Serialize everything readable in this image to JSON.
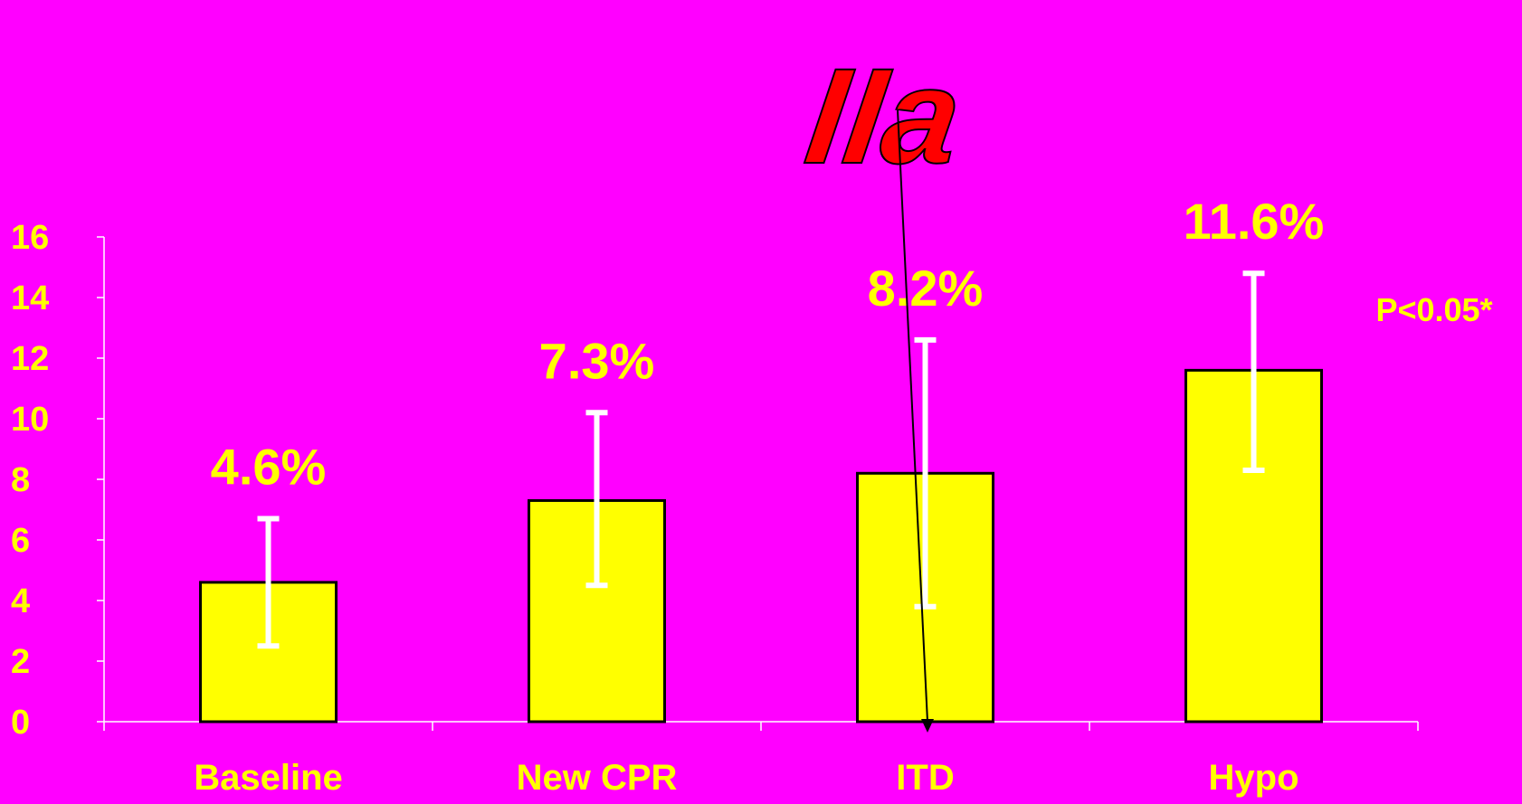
{
  "colors": {
    "background": "#FF00FF",
    "bar_fill": "#FFFF00",
    "bar_stroke": "#000000",
    "text": "#FFFF00",
    "error_bar": "#FFFFFF",
    "badge_fill": "#FF0000",
    "axis": "#FFFFFF"
  },
  "badge": {
    "text": "IIa"
  },
  "chart_data": {
    "type": "bar",
    "categories": [
      "Baseline",
      "New CPR",
      "ITD",
      "Hypo"
    ],
    "values": [
      4.6,
      7.3,
      8.2,
      11.6
    ],
    "data_labels": [
      "4.6%",
      "7.3%",
      "8.2%",
      "11.6%"
    ],
    "error_bars": [
      {
        "low": 2.5,
        "high": 6.7
      },
      {
        "low": 4.5,
        "high": 10.2
      },
      {
        "low": 3.8,
        "high": 12.6
      },
      {
        "low": 8.3,
        "high": 14.8
      }
    ],
    "ylim": [
      0,
      16
    ],
    "yticks": [
      0,
      2,
      4,
      6,
      8,
      10,
      12,
      14,
      16
    ],
    "annotation": "P<0.05*",
    "title": "",
    "xlabel": "",
    "ylabel": "",
    "grid": false,
    "legend": "none"
  }
}
